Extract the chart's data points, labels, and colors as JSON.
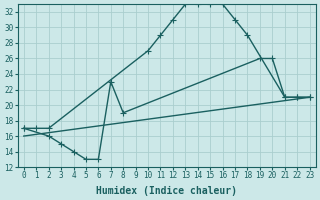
{
  "xlabel": "Humidex (Indice chaleur)",
  "bg_color": "#cce8e8",
  "line_color": "#1a6060",
  "grid_color": "#aacece",
  "xlim": [
    -0.5,
    23.5
  ],
  "ylim": [
    12,
    33
  ],
  "xticks": [
    0,
    1,
    2,
    3,
    4,
    5,
    6,
    7,
    8,
    9,
    10,
    11,
    12,
    13,
    14,
    15,
    16,
    17,
    18,
    19,
    20,
    21,
    22,
    23
  ],
  "yticks": [
    12,
    14,
    16,
    18,
    20,
    22,
    24,
    26,
    28,
    30,
    32
  ],
  "curve1_x": [
    0,
    1,
    2,
    10,
    11,
    12,
    13,
    14,
    15,
    16,
    17,
    18,
    21,
    22,
    23
  ],
  "curve1_y": [
    17,
    17,
    17,
    27,
    29,
    31,
    33,
    33,
    33,
    33,
    31,
    29,
    21,
    21,
    21
  ],
  "curve2_x": [
    0,
    2,
    3,
    4,
    5,
    6,
    7,
    8,
    19,
    20,
    21,
    22,
    23
  ],
  "curve2_y": [
    17,
    16,
    15,
    14,
    13,
    13,
    23,
    19,
    26,
    26,
    21,
    21,
    21
  ],
  "curve3_x": [
    0,
    23
  ],
  "curve3_y": [
    16,
    21
  ],
  "markersize": 3,
  "linewidth": 1.0,
  "tick_fontsize": 5.5,
  "xlabel_fontsize": 7
}
